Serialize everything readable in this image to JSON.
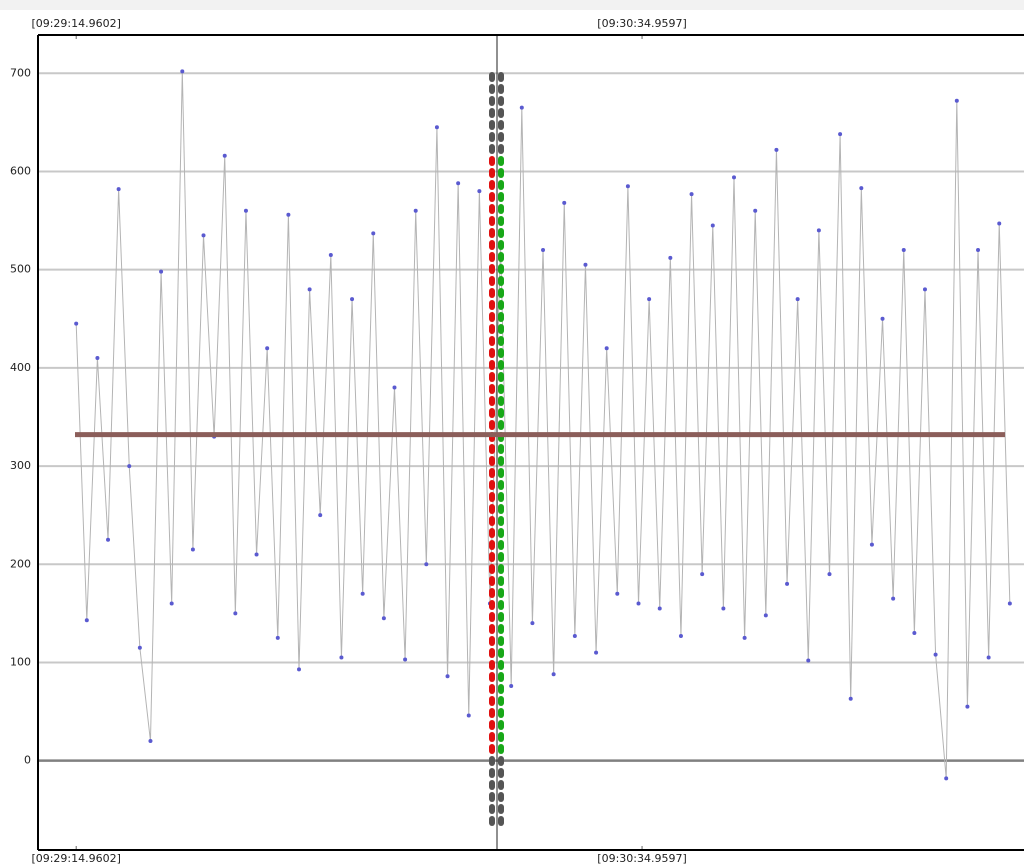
{
  "chart_data": {
    "type": "line",
    "x": [
      0,
      1.5,
      3,
      4.5,
      6,
      7.5,
      9,
      10.5,
      12,
      13.5,
      15,
      16.5,
      18,
      19.5,
      21,
      22.5,
      24,
      25.5,
      27,
      28.5,
      30,
      31.5,
      33,
      34.5,
      36,
      37.5,
      39,
      40.5,
      42,
      43.5,
      45,
      46.5,
      48,
      49.5,
      51,
      52.5,
      54,
      55.5,
      57,
      58.5,
      60,
      61.5,
      63,
      64.5,
      66,
      67.5,
      69,
      70.5,
      72,
      73.5,
      75,
      76.5,
      78,
      79.5,
      81,
      82.5,
      84,
      85.5,
      87,
      88.5,
      90,
      91.5,
      93,
      94.5,
      96,
      97.5,
      99,
      100.5,
      102,
      103.5,
      105,
      106.5,
      108,
      109.5,
      111,
      112.5,
      114,
      115.5,
      117,
      118.5,
      120,
      121.5,
      123,
      124.5,
      126,
      127.5,
      129,
      130.5,
      132
    ],
    "series": [
      {
        "color": "#5a5ad0",
        "line_color": "#b4b4b4",
        "values": [
          445,
          143,
          410,
          225,
          582,
          300,
          115,
          20,
          498,
          160,
          702,
          215,
          535,
          330,
          616,
          150,
          560,
          210,
          420,
          125,
          556,
          93,
          480,
          250,
          515,
          105,
          470,
          170,
          537,
          145,
          380,
          103,
          560,
          200,
          645,
          86,
          588,
          46,
          580,
          160,
          525,
          76,
          665,
          140,
          520,
          88,
          568,
          127,
          505,
          110,
          420,
          170,
          585,
          160,
          470,
          155,
          512,
          127,
          577,
          190,
          545,
          155,
          594,
          125,
          560,
          148,
          622,
          180,
          470,
          102,
          540,
          190,
          638,
          63,
          583,
          220,
          450,
          165,
          520,
          130,
          480,
          108,
          -18,
          672,
          55,
          520,
          105,
          547,
          160
        ]
      }
    ],
    "reference_line": 332,
    "reference_color": "#8b5e5a",
    "xlim": [
      -5.4,
      134
    ],
    "xticks": [
      {
        "value": 0,
        "label": "[09:29:14.9602]"
      },
      {
        "value": 80,
        "label": "[09:30:34.9597]"
      }
    ],
    "ylim": [
      -91,
      739
    ],
    "yticks": [
      0,
      100,
      200,
      300,
      400,
      500,
      600,
      700
    ],
    "grid": true
  }
}
